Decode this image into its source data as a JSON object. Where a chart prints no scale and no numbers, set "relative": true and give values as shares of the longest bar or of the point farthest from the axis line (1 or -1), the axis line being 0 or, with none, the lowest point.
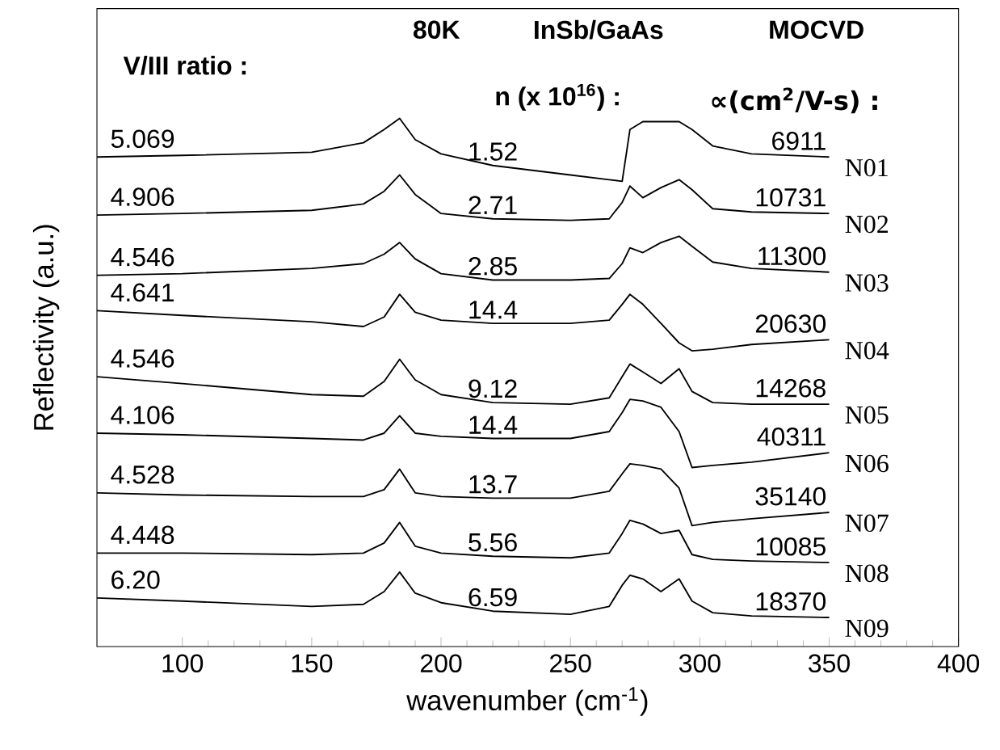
{
  "chart_data": {
    "type": "line",
    "relative": true,
    "xlabel": "wavenumber (cm$^{-1}$)",
    "ylabel": "Reflectivity (a.u.)",
    "xlim": [
      67,
      400
    ],
    "xticks": [
      100,
      150,
      200,
      250,
      300,
      350,
      400
    ],
    "x": [
      67,
      100,
      150,
      170,
      178,
      184,
      190,
      200,
      220,
      250,
      265,
      270,
      273,
      278,
      285,
      292,
      297,
      305,
      320,
      350
    ],
    "series": [
      {
        "name": "N01",
        "color": "#000000",
        "values": [
          0.927,
          0.93,
          0.936,
          0.954,
          0.979,
          1,
          0.96,
          0.933,
          0.911,
          0.893,
          0.884,
          0.881,
          0.979,
          0.994,
          0.994,
          0.994,
          0.979,
          0.948,
          0.933,
          0.927
        ]
      },
      {
        "name": "N02",
        "color": "#000000",
        "values": [
          0.817,
          0.82,
          0.826,
          0.838,
          0.862,
          0.893,
          0.856,
          0.82,
          0.81,
          0.807,
          0.81,
          0.841,
          0.872,
          0.85,
          0.869,
          0.884,
          0.865,
          0.829,
          0.823,
          0.82
        ]
      },
      {
        "name": "N03",
        "color": "#000000",
        "values": [
          0.703,
          0.706,
          0.716,
          0.725,
          0.743,
          0.765,
          0.734,
          0.706,
          0.694,
          0.694,
          0.697,
          0.725,
          0.755,
          0.746,
          0.765,
          0.777,
          0.758,
          0.728,
          0.716,
          0.709
        ]
      },
      {
        "name": "N04",
        "color": "#000000",
        "values": [
          0.636,
          0.627,
          0.615,
          0.606,
          0.624,
          0.667,
          0.633,
          0.618,
          0.612,
          0.612,
          0.618,
          0.648,
          0.667,
          0.648,
          0.612,
          0.575,
          0.56,
          0.563,
          0.572,
          0.581
        ]
      },
      {
        "name": "N05",
        "color": "#000000",
        "values": [
          0.511,
          0.498,
          0.477,
          0.474,
          0.502,
          0.544,
          0.505,
          0.477,
          0.462,
          0.459,
          0.471,
          0.511,
          0.535,
          0.52,
          0.498,
          0.526,
          0.483,
          0.462,
          0.459,
          0.459
        ]
      },
      {
        "name": "N06",
        "color": "#000000",
        "values": [
          0.404,
          0.401,
          0.394,
          0.391,
          0.404,
          0.437,
          0.404,
          0.398,
          0.394,
          0.394,
          0.407,
          0.443,
          0.468,
          0.465,
          0.453,
          0.407,
          0.339,
          0.343,
          0.349,
          0.367
        ]
      },
      {
        "name": "N07",
        "color": "#000000",
        "values": [
          0.291,
          0.287,
          0.284,
          0.284,
          0.297,
          0.336,
          0.291,
          0.284,
          0.281,
          0.281,
          0.294,
          0.327,
          0.346,
          0.343,
          0.336,
          0.3,
          0.229,
          0.235,
          0.242,
          0.254
        ]
      },
      {
        "name": "N08",
        "color": "#000000",
        "values": [
          0.177,
          0.177,
          0.174,
          0.177,
          0.196,
          0.235,
          0.19,
          0.177,
          0.171,
          0.168,
          0.177,
          0.214,
          0.239,
          0.232,
          0.214,
          0.22,
          0.174,
          0.165,
          0.162,
          0.159
        ]
      },
      {
        "name": "N09",
        "color": "#000000",
        "values": [
          0.092,
          0.086,
          0.076,
          0.08,
          0.104,
          0.141,
          0.101,
          0.083,
          0.067,
          0.061,
          0.076,
          0.116,
          0.135,
          0.128,
          0.104,
          0.128,
          0.086,
          0.064,
          0.058,
          0.055
        ]
      }
    ],
    "annotations": [
      "80K",
      "InSb/GaAs",
      "MOCVD",
      "V/III ratio :",
      "n (x 10$^{16}$) :",
      "∝(cm$^{2}$/V-s) :",
      "5.069",
      "1.52",
      "6911",
      "4.906",
      "2.71",
      "10731",
      "4.546",
      "2.85",
      "11300",
      "4.641",
      "14.4",
      "20630",
      "4.546",
      "9.12",
      "14268",
      "4.106",
      "14.4",
      "40311",
      "4.528",
      "13.7",
      "35140",
      "4.448",
      "5.56",
      "10085",
      "6.20",
      "6.59",
      "18370"
    ]
  }
}
